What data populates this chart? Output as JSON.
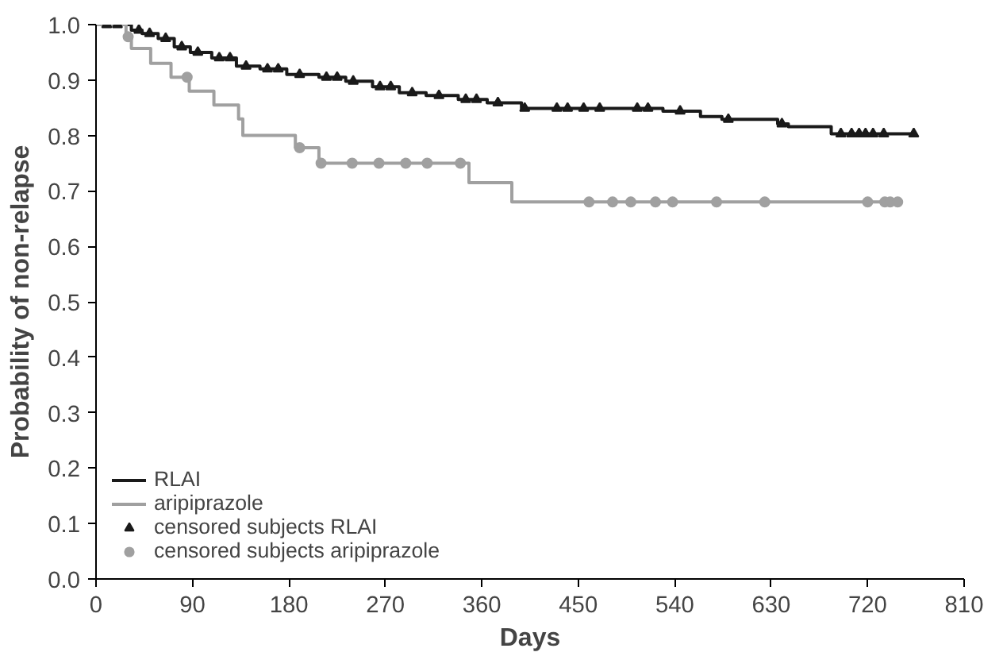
{
  "chart_data": {
    "type": "step",
    "xlabel": "Days",
    "ylabel": "Probability of non-relapse",
    "xlim": [
      0,
      810
    ],
    "ylim": [
      0,
      1.0
    ],
    "xticks": [
      0,
      90,
      180,
      270,
      360,
      450,
      540,
      630,
      720,
      810
    ],
    "yticks": [
      {
        "value": 0,
        "label": "0.0"
      },
      {
        "value": 0.1,
        "label": "0.1"
      },
      {
        "value": 0.2,
        "label": "0.2"
      },
      {
        "value": 0.3,
        "label": "0.3"
      },
      {
        "value": 0.4,
        "label": "0.4"
      },
      {
        "value": 0.5,
        "label": "0.5"
      },
      {
        "value": 0.6,
        "label": "0.6"
      },
      {
        "value": 0.7,
        "label": "0.7"
      },
      {
        "value": 0.8,
        "label": "0.8"
      },
      {
        "value": 0.9,
        "label": "0.9"
      },
      {
        "value": 1.0,
        "label": "1.0"
      }
    ],
    "legend": "bottom left",
    "line_style": "solid",
    "series": [
      {
        "name": "RLAI",
        "color": "#1a1a1a",
        "x": [
          0,
          33,
          43,
          58,
          73,
          88,
          108,
          131,
          153,
          178,
          208,
          233,
          258,
          283,
          308,
          338,
          365,
          397,
          529,
          564,
          584,
          636,
          646,
          686,
          765
        ],
        "values": [
          1.0,
          0.99,
          0.984,
          0.975,
          0.96,
          0.95,
          0.94,
          0.925,
          0.92,
          0.91,
          0.905,
          0.898,
          0.888,
          0.877,
          0.872,
          0.865,
          0.859,
          0.849,
          0.844,
          0.834,
          0.829,
          0.821,
          0.816,
          0.803,
          0.803
        ]
      },
      {
        "name": "aripiprazole",
        "color": "#a0a0a0",
        "x": [
          0,
          28,
          33,
          51,
          70,
          87,
          110,
          133,
          137,
          186,
          208,
          348,
          388,
          750
        ],
        "values": [
          1.0,
          0.978,
          0.957,
          0.93,
          0.905,
          0.88,
          0.855,
          0.83,
          0.8,
          0.778,
          0.75,
          0.715,
          0.68,
          0.68
        ]
      },
      {
        "name": "censored subjects RLAI",
        "type": "scatter",
        "color": "#1a1a1a",
        "marker": "triangle",
        "x": [
          10,
          20,
          40,
          50,
          65,
          80,
          95,
          115,
          125,
          140,
          160,
          170,
          190,
          215,
          225,
          240,
          265,
          275,
          295,
          320,
          345,
          355,
          375,
          400,
          430,
          440,
          455,
          470,
          505,
          515,
          545,
          590,
          640,
          695,
          705,
          712,
          718,
          725,
          735,
          763
        ],
        "values": [
          1.0,
          1.0,
          0.99,
          0.984,
          0.975,
          0.96,
          0.95,
          0.94,
          0.94,
          0.925,
          0.92,
          0.92,
          0.91,
          0.905,
          0.905,
          0.898,
          0.888,
          0.888,
          0.877,
          0.872,
          0.865,
          0.865,
          0.859,
          0.849,
          0.849,
          0.849,
          0.849,
          0.849,
          0.849,
          0.849,
          0.844,
          0.829,
          0.821,
          0.803,
          0.803,
          0.803,
          0.803,
          0.803,
          0.803,
          0.803
        ]
      },
      {
        "name": "censored subjects aripiprazole",
        "type": "scatter",
        "color": "#a0a0a0",
        "marker": "circle",
        "x": [
          30,
          85,
          190,
          210,
          239,
          264,
          289,
          309,
          340,
          460,
          482,
          499,
          522,
          538,
          579,
          624,
          720,
          736,
          741,
          748
        ],
        "values": [
          0.978,
          0.905,
          0.778,
          0.75,
          0.75,
          0.75,
          0.75,
          0.75,
          0.75,
          0.68,
          0.68,
          0.68,
          0.68,
          0.68,
          0.68,
          0.68,
          0.68,
          0.68,
          0.68,
          0.68
        ]
      }
    ]
  }
}
